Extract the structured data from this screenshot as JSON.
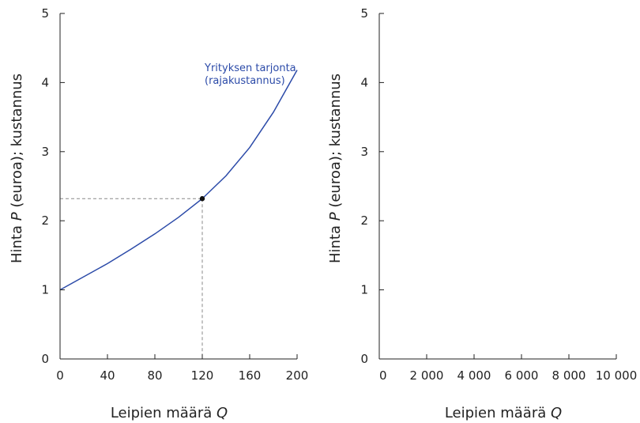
{
  "chart_data": [
    {
      "type": "line",
      "xlabel_main": "Leipien määrä ",
      "xlabel_var": "Q",
      "ylabel_pre": "Hinta ",
      "ylabel_var": "P",
      "ylabel_post": " (euroa); kustannus",
      "xlim": [
        0,
        200
      ],
      "ylim": [
        0,
        5
      ],
      "x_ticks": [
        0,
        40,
        80,
        120,
        160,
        200
      ],
      "x_tick_labels": [
        "0",
        "40",
        "80",
        "120",
        "160",
        "200"
      ],
      "y_ticks": [
        0,
        1,
        2,
        3,
        4,
        5
      ],
      "y_tick_labels": [
        "0",
        "1",
        "2",
        "3",
        "4",
        "5"
      ],
      "series": [
        {
          "name": "Yrityksen tarjonta (rajakustannus)",
          "color": "#2b4aa8",
          "x": [
            0,
            20,
            40,
            60,
            80,
            100,
            120,
            140,
            160,
            180,
            200
          ],
          "y": [
            1.0,
            1.19,
            1.38,
            1.59,
            1.81,
            2.05,
            2.32,
            2.65,
            3.06,
            3.57,
            4.18
          ]
        }
      ],
      "annotations": [
        {
          "text_line1": "Yrityksen tarjonta",
          "text_line2": "(rajakustannus)"
        }
      ],
      "marked_point": {
        "x": 120,
        "y": 2.32
      },
      "grid": false
    },
    {
      "type": "line",
      "xlabel_main": "Leipien määrä ",
      "xlabel_var": "Q",
      "ylabel_pre": "Hinta ",
      "ylabel_var": "P",
      "ylabel_post": " (euroa); kustannus",
      "xlim": [
        0,
        10000
      ],
      "ylim": [
        0,
        5
      ],
      "x_ticks": [
        0,
        2000,
        4000,
        6000,
        8000,
        10000
      ],
      "x_tick_labels": [
        "0",
        "2 000",
        "4 000",
        "6 000",
        "8 000",
        "10 000"
      ],
      "y_ticks": [
        0,
        1,
        2,
        3,
        4,
        5
      ],
      "y_tick_labels": [
        "0",
        "1",
        "2",
        "3",
        "4",
        "5"
      ],
      "series": [],
      "grid": false
    }
  ]
}
